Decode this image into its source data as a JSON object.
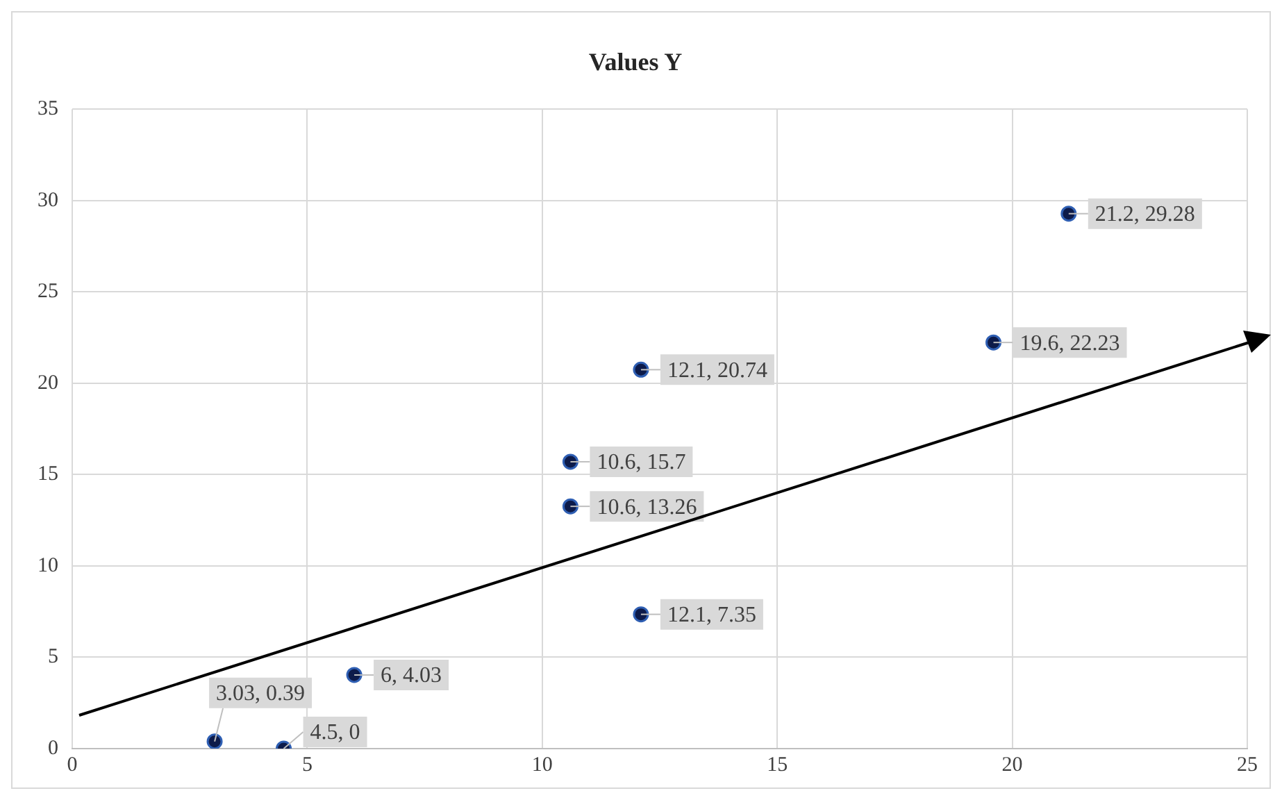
{
  "chart_data": {
    "type": "scatter",
    "title": "Values Y",
    "x": [
      3.03,
      4.5,
      6,
      10.6,
      10.6,
      12.1,
      12.1,
      19.6,
      21.2
    ],
    "values": [
      0.39,
      0,
      4.03,
      13.26,
      15.7,
      7.35,
      20.74,
      22.23,
      29.28
    ],
    "color": "#0d1b4a",
    "xlim": [
      0,
      25
    ],
    "xticks": [
      0,
      5,
      10,
      15,
      20,
      25
    ],
    "ylim": [
      0,
      35
    ],
    "yticks": [
      0,
      5,
      10,
      15,
      20,
      25,
      30,
      35
    ],
    "value_labels": [
      "3.03, 0.39",
      "4.5, 0",
      "6, 4.03",
      "10.6, 13.26",
      "10.6, 15.7",
      "12.1, 7.35",
      "12.1, 20.74",
      "19.6, 22.23",
      "21.2, 29.28"
    ],
    "grid": true,
    "marker": "circle"
  }
}
